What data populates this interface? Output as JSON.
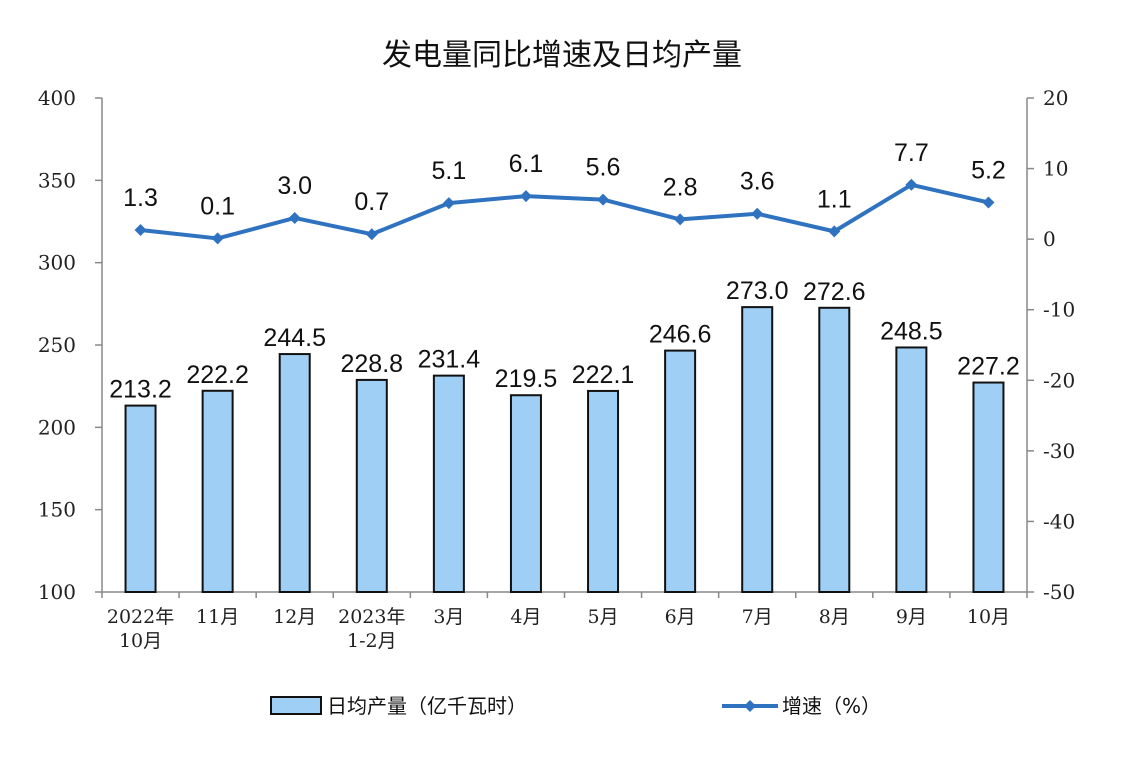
{
  "chart_data": {
    "type": "bar",
    "title": "发电量同比增速及日均产量",
    "categories": [
      [
        "2022年",
        "10月"
      ],
      [
        "11月"
      ],
      [
        "12月"
      ],
      [
        "2023年",
        "1-2月"
      ],
      [
        "3月"
      ],
      [
        "4月"
      ],
      [
        "5月"
      ],
      [
        "6月"
      ],
      [
        "7月"
      ],
      [
        "8月"
      ],
      [
        "9月"
      ],
      [
        "10月"
      ]
    ],
    "series": [
      {
        "name": "日均产量（亿千瓦时）",
        "type": "bar",
        "axis": "left",
        "values": [
          213.2,
          222.2,
          244.5,
          228.8,
          231.4,
          219.5,
          222.1,
          246.6,
          273.0,
          272.6,
          248.5,
          227.2
        ],
        "labels": [
          "213.2",
          "222.2",
          "244.5",
          "228.8",
          "231.4",
          "219.5",
          "222.1",
          "246.6",
          "273.0",
          "272.6",
          "248.5",
          "227.2"
        ],
        "color": "#9fcff5"
      },
      {
        "name": "增速（%）",
        "type": "line",
        "axis": "right",
        "values": [
          1.3,
          0.1,
          3.0,
          0.7,
          5.1,
          6.1,
          5.6,
          2.8,
          3.6,
          1.1,
          7.7,
          5.2
        ],
        "labels": [
          "1.3",
          "0.1",
          "3.0",
          "0.7",
          "5.1",
          "6.1",
          "5.6",
          "2.8",
          "3.6",
          "1.1",
          "7.7",
          "5.2"
        ],
        "color": "#2f73c0"
      }
    ],
    "y_left": {
      "min": 100,
      "max": 400,
      "ticks": [
        "100",
        "150",
        "200",
        "250",
        "300",
        "350",
        "400"
      ]
    },
    "y_right": {
      "min": -50,
      "max": 20,
      "ticks": [
        "-50",
        "-40",
        "-30",
        "-20",
        "-10",
        "0",
        "10",
        "20"
      ]
    },
    "grid": false,
    "legend_position": "bottom"
  }
}
